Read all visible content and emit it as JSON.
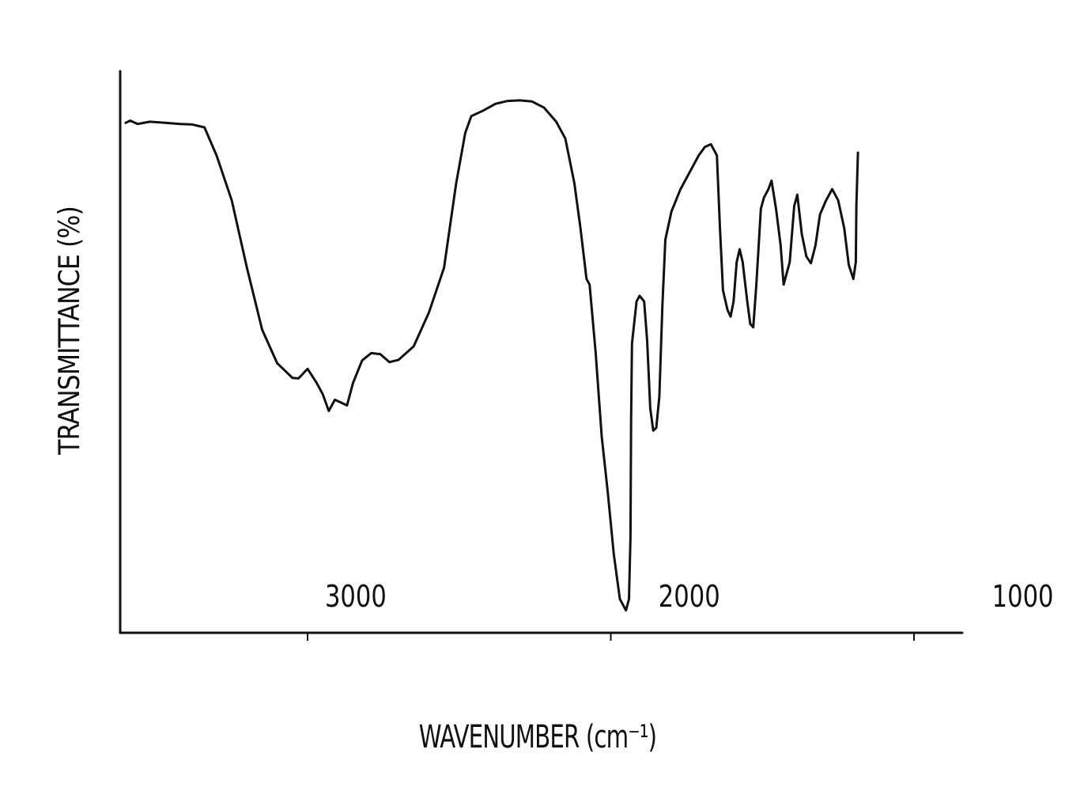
{
  "chart_data": {
    "type": "line",
    "title": "",
    "xlabel": "WAVENUMBER (cm⁻¹)",
    "ylabel": "TRANSMITTANCE (%)",
    "x_reversed": true,
    "xlim": [
      3600,
      750
    ],
    "ylim": [
      0,
      100
    ],
    "grid": false,
    "xticks": [
      {
        "value": 3000,
        "label": "3000"
      },
      {
        "value": 2000,
        "label": "2000"
      },
      {
        "value": 1000,
        "label": "1000"
      }
    ],
    "series": [
      {
        "points": [
          [
            3600,
            90.8
          ],
          [
            3585,
            91.2
          ],
          [
            3560,
            90.6
          ],
          [
            3520,
            91.0
          ],
          [
            3470,
            90.8
          ],
          [
            3420,
            90.6
          ],
          [
            3380,
            90.5
          ],
          [
            3340,
            90.0
          ],
          [
            3300,
            85.0
          ],
          [
            3250,
            77.0
          ],
          [
            3200,
            65.0
          ],
          [
            3150,
            54.0
          ],
          [
            3100,
            48.0
          ],
          [
            3050,
            45.4
          ],
          [
            3030,
            45.3
          ],
          [
            3000,
            47.0
          ],
          [
            2970,
            44.5
          ],
          [
            2950,
            42.5
          ],
          [
            2930,
            39.5
          ],
          [
            2910,
            41.5
          ],
          [
            2890,
            41.0
          ],
          [
            2870,
            40.5
          ],
          [
            2850,
            44.5
          ],
          [
            2820,
            48.5
          ],
          [
            2790,
            49.8
          ],
          [
            2760,
            49.6
          ],
          [
            2730,
            48.2
          ],
          [
            2700,
            48.6
          ],
          [
            2650,
            51.0
          ],
          [
            2600,
            57.0
          ],
          [
            2550,
            65.0
          ],
          [
            2510,
            80.0
          ],
          [
            2480,
            89.0
          ],
          [
            2460,
            92.0
          ],
          [
            2420,
            93.0
          ],
          [
            2380,
            94.2
          ],
          [
            2340,
            94.7
          ],
          [
            2300,
            94.8
          ],
          [
            2260,
            94.6
          ],
          [
            2220,
            93.5
          ],
          [
            2180,
            91.0
          ],
          [
            2150,
            88.0
          ],
          [
            2120,
            80.0
          ],
          [
            2100,
            72.0
          ],
          [
            2080,
            63.0
          ],
          [
            2070,
            62.0
          ],
          [
            2050,
            50.0
          ],
          [
            2030,
            35.0
          ],
          [
            2010,
            25.0
          ],
          [
            1990,
            14.0
          ],
          [
            1970,
            6.0
          ],
          [
            1950,
            4.0
          ],
          [
            1940,
            6.0
          ],
          [
            1935,
            17.0
          ],
          [
            1933,
            38.0
          ],
          [
            1930,
            51.5
          ],
          [
            1915,
            59.0
          ],
          [
            1905,
            60.0
          ],
          [
            1890,
            59.0
          ],
          [
            1880,
            52.0
          ],
          [
            1870,
            40.0
          ],
          [
            1860,
            36.0
          ],
          [
            1850,
            36.5
          ],
          [
            1840,
            42.0
          ],
          [
            1830,
            58.0
          ],
          [
            1820,
            70.0
          ],
          [
            1800,
            75.0
          ],
          [
            1770,
            79.0
          ],
          [
            1740,
            82.0
          ],
          [
            1710,
            85.0
          ],
          [
            1690,
            86.5
          ],
          [
            1670,
            87.0
          ],
          [
            1650,
            85.0
          ],
          [
            1640,
            72.0
          ],
          [
            1630,
            61.0
          ],
          [
            1615,
            57.5
          ],
          [
            1605,
            56.3
          ],
          [
            1595,
            59.0
          ],
          [
            1585,
            66.0
          ],
          [
            1575,
            68.3
          ],
          [
            1565,
            66.0
          ],
          [
            1550,
            59.0
          ],
          [
            1540,
            55.0
          ],
          [
            1530,
            54.4
          ],
          [
            1520,
            62.0
          ],
          [
            1505,
            75.5
          ],
          [
            1495,
            77.5
          ],
          [
            1480,
            79.0
          ],
          [
            1470,
            80.5
          ],
          [
            1455,
            75.5
          ],
          [
            1440,
            69.0
          ],
          [
            1430,
            62.0
          ],
          [
            1410,
            66.0
          ],
          [
            1395,
            76.0
          ],
          [
            1385,
            78.0
          ],
          [
            1370,
            71.0
          ],
          [
            1355,
            67.0
          ],
          [
            1340,
            65.8
          ],
          [
            1325,
            69.0
          ],
          [
            1310,
            74.5
          ],
          [
            1290,
            77.0
          ],
          [
            1270,
            79.0
          ],
          [
            1250,
            77.0
          ],
          [
            1230,
            72.0
          ],
          [
            1215,
            65.5
          ],
          [
            1200,
            63.0
          ],
          [
            1192,
            66.0
          ],
          [
            1190,
            76.0
          ],
          [
            1185,
            85.5
          ]
        ]
      }
    ]
  }
}
